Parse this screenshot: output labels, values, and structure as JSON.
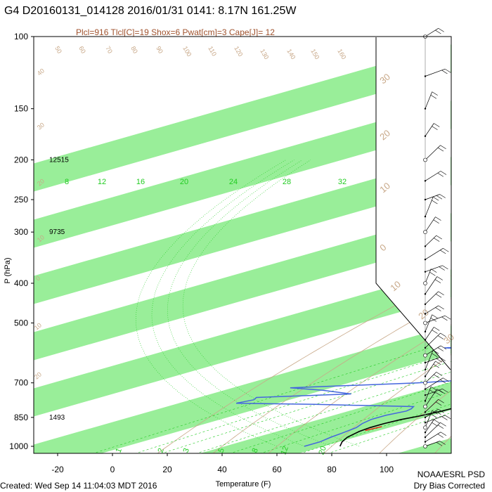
{
  "title": "G4 D20160131_014128 2016/01/31 0141:  8.17N 161.25W",
  "subtitle": "Plcl=916 Tlcl[C]=19 Shox=6 Pwat[cm]=3 Cape[J]= 12",
  "footer": {
    "created": "Created: Wed Sep 14 11:04:03 MDT 2016",
    "org_line1": "NOAA/ESRL PSD",
    "org_line2": "Dry Bias Corrected"
  },
  "colors": {
    "band": "#99ee99",
    "temperature": "#000000",
    "dewpoint": "#4466dd",
    "parcel_segment": "#ff0000",
    "dry_adiabat": "#c8a888",
    "mixing_ratio": "#22cc22",
    "moist_adiabat": "#22cc22"
  },
  "chart_data": {
    "type": "skew-t",
    "xlabel": "Temperature (F)",
    "ylabel": "P (hPa)",
    "x_ticks": [
      "-20",
      "0",
      "20",
      "40",
      "60",
      "80",
      "100"
    ],
    "y_ticks": [
      "100",
      "150",
      "200",
      "250",
      "300",
      "400",
      "500",
      "700",
      "850",
      "1000"
    ],
    "height_labels": [
      {
        "p": 200,
        "text": "12515"
      },
      {
        "p": 300,
        "text": "9735"
      },
      {
        "p": 850,
        "text": "1493"
      }
    ],
    "mixing_ratio_labels": [
      "8",
      "12",
      "16",
      "20",
      "24",
      "28",
      "32"
    ],
    "bottom_mixing_labels": [
      "1",
      "2",
      "3",
      "5",
      "8",
      "12",
      "20"
    ],
    "isotherm_labels_C": [
      "30",
      "20",
      "10",
      "0",
      "10",
      "20",
      "30"
    ],
    "isotherm_labels_left_C": [
      "40",
      "30",
      "20",
      "10",
      "0",
      "10",
      "20"
    ],
    "dry_adiabat_labels": [
      "50",
      "60",
      "70",
      "80",
      "90",
      "100",
      "110",
      "120",
      "130",
      "140",
      "150",
      "160"
    ],
    "temperature_F": [
      {
        "p": 1000,
        "t": 83
      },
      {
        "p": 975,
        "t": 78
      },
      {
        "p": 950,
        "t": 74
      },
      {
        "p": 920,
        "t": 71
      },
      {
        "p": 900,
        "t": 70
      },
      {
        "p": 880,
        "t": 70
      },
      {
        "p": 860,
        "t": 71
      },
      {
        "p": 845,
        "t": 73
      },
      {
        "p": 820,
        "t": 75
      },
      {
        "p": 790,
        "t": 76
      },
      {
        "p": 760,
        "t": 78
      },
      {
        "p": 730,
        "t": 79
      },
      {
        "p": 700,
        "t": 80
      },
      {
        "p": 680,
        "t": 79
      },
      {
        "p": 660,
        "t": 77
      },
      {
        "p": 640,
        "t": 75
      },
      {
        "p": 620,
        "t": 72
      },
      {
        "p": 600,
        "t": 70
      },
      {
        "p": 580,
        "t": 71
      },
      {
        "p": 560,
        "t": 72
      },
      {
        "p": 540,
        "t": 70
      },
      {
        "p": 520,
        "t": 69
      },
      {
        "p": 500,
        "t": 67
      },
      {
        "p": 480,
        "t": 67
      },
      {
        "p": 460,
        "t": 66
      },
      {
        "p": 440,
        "t": 65
      },
      {
        "p": 420,
        "t": 64
      },
      {
        "p": 400,
        "t": 63
      },
      {
        "p": 380,
        "t": 62
      },
      {
        "p": 360,
        "t": 62
      },
      {
        "p": 340,
        "t": 61
      },
      {
        "p": 320,
        "t": 58
      },
      {
        "p": 300,
        "t": 56
      },
      {
        "p": 280,
        "t": 53
      },
      {
        "p": 260,
        "t": 51
      },
      {
        "p": 240,
        "t": 48
      },
      {
        "p": 220,
        "t": 44
      },
      {
        "p": 200,
        "t": 40
      },
      {
        "p": 185,
        "t": 36
      }
    ],
    "dewpoint_F": [
      {
        "p": 1000,
        "t": 70
      },
      {
        "p": 975,
        "t": 70
      },
      {
        "p": 950,
        "t": 68
      },
      {
        "p": 930,
        "t": 67
      },
      {
        "p": 900,
        "t": 65
      },
      {
        "p": 880,
        "t": 62
      },
      {
        "p": 860,
        "t": 60
      },
      {
        "p": 840,
        "t": 60
      },
      {
        "p": 820,
        "t": 62
      },
      {
        "p": 810,
        "t": 61
      },
      {
        "p": 800,
        "t": 59
      },
      {
        "p": 790,
        "t": 20
      },
      {
        "p": 785,
        "t": -10
      },
      {
        "p": 770,
        "t": -8
      },
      {
        "p": 760,
        "t": -10
      },
      {
        "p": 745,
        "t": 20
      },
      {
        "p": 730,
        "t": 5
      },
      {
        "p": 720,
        "t": -10
      },
      {
        "p": 700,
        "t": 30
      },
      {
        "p": 680,
        "t": 55
      },
      {
        "p": 650,
        "t": 58
      },
      {
        "p": 630,
        "t": 62
      },
      {
        "p": 610,
        "t": 60
      },
      {
        "p": 590,
        "t": 40
      },
      {
        "p": 575,
        "t": -5
      },
      {
        "p": 565,
        "t": 20
      },
      {
        "p": 560,
        "t": 10
      },
      {
        "p": 550,
        "t": 30
      },
      {
        "p": 540,
        "t": 50
      },
      {
        "p": 530,
        "t": 58
      },
      {
        "p": 515,
        "t": 62
      },
      {
        "p": 505,
        "t": 60
      },
      {
        "p": 495,
        "t": 40
      },
      {
        "p": 485,
        "t": -10
      },
      {
        "p": 470,
        "t": 20
      },
      {
        "p": 460,
        "t": 40
      },
      {
        "p": 440,
        "t": 10
      },
      {
        "p": 420,
        "t": 0
      },
      {
        "p": 400,
        "t": -10
      },
      {
        "p": 380,
        "t": -10
      },
      {
        "p": 360,
        "t": -5
      },
      {
        "p": 350,
        "t": 10
      },
      {
        "p": 340,
        "t": 20
      },
      {
        "p": 320,
        "t": 35
      },
      {
        "p": 300,
        "t": 38
      },
      {
        "p": 285,
        "t": 35
      },
      {
        "p": 270,
        "t": 25
      },
      {
        "p": 255,
        "t": 15
      },
      {
        "p": 240,
        "t": 10
      },
      {
        "p": 230,
        "t": 10
      },
      {
        "p": 220,
        "t": 8
      },
      {
        "p": 210,
        "t": 9
      },
      {
        "p": 203,
        "t": 10
      }
    ],
    "parcel_F": [
      {
        "p": 915,
        "t": 72
      },
      {
        "p": 895,
        "t": 73
      }
    ],
    "wind_barb_pressures": [
      1000,
      975,
      950,
      925,
      900,
      875,
      850,
      825,
      800,
      775,
      750,
      725,
      700,
      675,
      650,
      625,
      600,
      575,
      550,
      525,
      500,
      475,
      450,
      425,
      400,
      375,
      350,
      325,
      300,
      275,
      250,
      225,
      200,
      175,
      150,
      125,
      100
    ]
  }
}
